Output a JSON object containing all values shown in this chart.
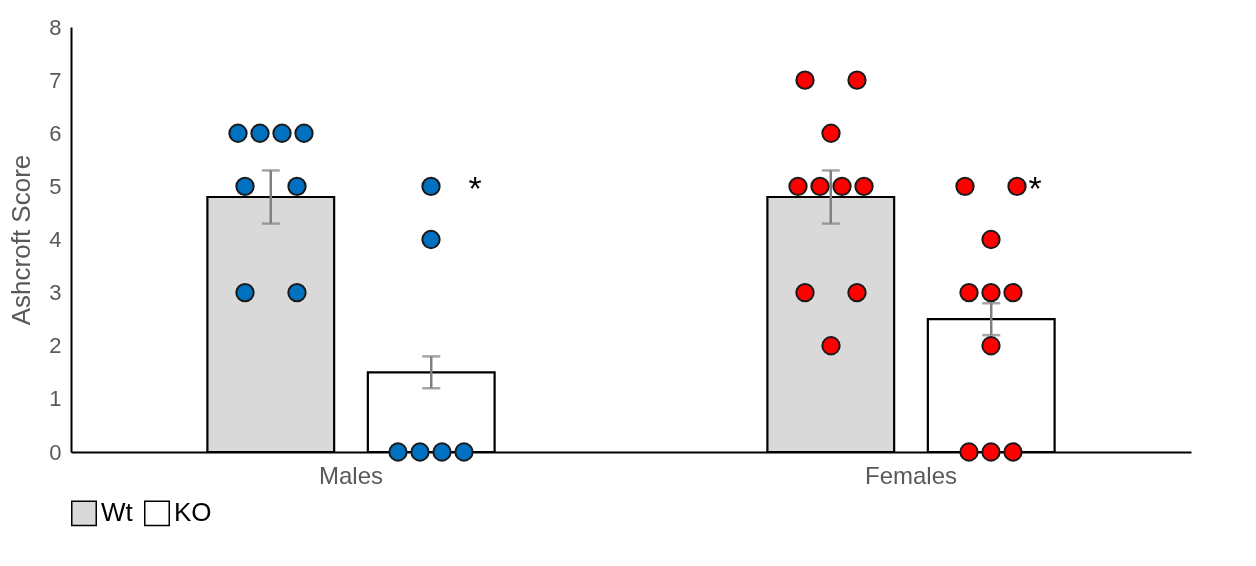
{
  "chart_data": {
    "type": "bar",
    "ylabel": "Ashcroft Score",
    "categories": [
      "Males",
      "Females"
    ],
    "ylim": [
      0,
      8
    ],
    "yticks": [
      0,
      1,
      2,
      3,
      4,
      5,
      6,
      7,
      8
    ],
    "legend": "bottom",
    "marker": "circle",
    "series": [
      {
        "name": "Wt",
        "color": "#d9d9d9",
        "values": [
          4.8,
          4.8
        ],
        "errors": [
          0.5,
          0.5
        ]
      },
      {
        "name": "KO",
        "color": "#ffffff",
        "values": [
          1.5,
          2.5
        ],
        "errors": [
          0.3,
          0.3
        ]
      },
      {
        "type": "scatter",
        "x": [
          "Males",
          "Males",
          "Males",
          "Males",
          "Males",
          "Males",
          "Males",
          "Males",
          "Females",
          "Females",
          "Females",
          "Females",
          "Females",
          "Females",
          "Females",
          "Females",
          "Females",
          "Females"
        ],
        "values": [
          6,
          6,
          6,
          6,
          5,
          5,
          3,
          3,
          7,
          7,
          6,
          5,
          5,
          5,
          5,
          3,
          3,
          2
        ],
        "colors": [
          "#0070c0",
          "#0070c0",
          "#0070c0",
          "#0070c0",
          "#0070c0",
          "#0070c0",
          "#0070c0",
          "#0070c0",
          "#ff0000",
          "#ff0000",
          "#ff0000",
          "#ff0000",
          "#ff0000",
          "#ff0000",
          "#ff0000",
          "#ff0000",
          "#ff0000",
          "#ff0000"
        ]
      },
      {
        "type": "scatter",
        "x": [
          "Males",
          "Males",
          "Males",
          "Males",
          "Males",
          "Males",
          "Females",
          "Females",
          "Females",
          "Females",
          "Females",
          "Females",
          "Females",
          "Females",
          "Females",
          "Females"
        ],
        "values": [
          5,
          4,
          0,
          0,
          0,
          0,
          5,
          5,
          4,
          3,
          3,
          3,
          2,
          0,
          0,
          0
        ],
        "colors": [
          "#0070c0",
          "#0070c0",
          "#0070c0",
          "#0070c0",
          "#0070c0",
          "#0070c0",
          "#ff0000",
          "#ff0000",
          "#ff0000",
          "#ff0000",
          "#ff0000",
          "#ff0000",
          "#ff0000",
          "#ff0000",
          "#ff0000",
          "#ff0000"
        ]
      }
    ],
    "annotations": [
      "*",
      "*"
    ]
  }
}
